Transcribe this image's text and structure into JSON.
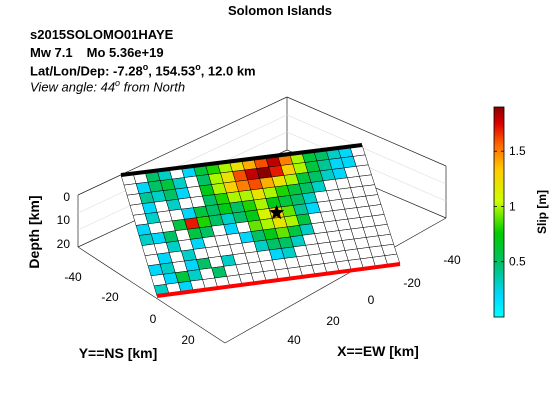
{
  "chart_data": {
    "type": "heatmap",
    "title": "Solomon Islands",
    "annotations": {
      "event": "s2015SOLOMO01HAYE",
      "magnitude": "Mw 7.1",
      "moment": "Mo 5.36e+19",
      "location_prefix": "Lat/Lon/Dep: -7.28",
      "location_mid": ", 154.53",
      "location_suffix": ", 12.0 km",
      "view_prefix": "View angle:  44",
      "view_suffix": " from North",
      "degree_symbol": "o"
    },
    "xlabel": "X==EW [km]",
    "ylabel": "Y==NS [km]",
    "zlabel": "Depth [km]",
    "x_ticks": [
      "-40",
      "-20",
      "0",
      "20",
      "40"
    ],
    "y_ticks": [
      "-40",
      "-20",
      "0",
      "20"
    ],
    "z_ticks": [
      "0",
      "10",
      "20"
    ],
    "colorbar": {
      "label": "Slip [m]",
      "ticks": [
        "0.5",
        "1",
        "1.5"
      ],
      "tick_values": [
        0.5,
        1.0,
        1.5
      ],
      "range": [
        0,
        1.9
      ],
      "colormap": "jet"
    },
    "grid": {
      "rows": 12,
      "cols": 20
    },
    "slip": [
      [
        0.0,
        0.0,
        0.5,
        0.3,
        0.0,
        0.2,
        0.6,
        0.8,
        1.0,
        1.2,
        1.4,
        1.6,
        1.8,
        1.5,
        1.0,
        0.6,
        0.5,
        0.3,
        0.2,
        0.0
      ],
      [
        0.0,
        0.2,
        0.5,
        0.6,
        0.3,
        0.0,
        0.5,
        1.0,
        1.2,
        1.6,
        1.8,
        1.9,
        1.7,
        1.3,
        1.0,
        0.6,
        0.4,
        0.2,
        0.2,
        0.0
      ],
      [
        0.0,
        0.4,
        0.3,
        0.5,
        0.2,
        0.0,
        0.7,
        1.0,
        1.3,
        1.5,
        1.6,
        1.4,
        1.2,
        1.0,
        0.6,
        0.5,
        0.3,
        0.2,
        0.0,
        0.0
      ],
      [
        0.0,
        0.2,
        0.0,
        0.3,
        0.0,
        0.0,
        0.5,
        0.8,
        1.0,
        1.0,
        1.2,
        1.0,
        0.8,
        0.6,
        0.5,
        0.3,
        0.0,
        0.0,
        0.0,
        0.0
      ],
      [
        0.0,
        0.3,
        0.0,
        0.0,
        0.2,
        0.6,
        0.5,
        0.7,
        0.5,
        0.8,
        1.0,
        0.7,
        0.6,
        0.5,
        0.3,
        0.0,
        0.0,
        0.0,
        0.0,
        0.0
      ],
      [
        0.2,
        0.0,
        0.0,
        0.6,
        1.7,
        0.8,
        0.5,
        0.3,
        0.5,
        0.7,
        1.1,
        1.3,
        0.9,
        0.4,
        0.2,
        0.0,
        0.0,
        0.0,
        0.0,
        0.0
      ],
      [
        0.3,
        0.2,
        0.5,
        0.0,
        0.6,
        0.5,
        0.0,
        0.2,
        0.0,
        0.9,
        1.0,
        1.2,
        1.0,
        0.6,
        0.0,
        0.0,
        0.0,
        0.0,
        0.0,
        0.0
      ],
      [
        0.0,
        0.0,
        0.3,
        0.0,
        0.2,
        0.0,
        0.0,
        0.0,
        0.2,
        0.5,
        0.7,
        0.9,
        0.6,
        0.3,
        0.0,
        0.0,
        0.0,
        0.0,
        0.0,
        0.0
      ],
      [
        0.0,
        0.2,
        0.0,
        0.3,
        0.0,
        0.0,
        0.0,
        0.0,
        0.0,
        0.3,
        0.5,
        0.5,
        0.3,
        0.0,
        0.0,
        0.0,
        0.0,
        0.0,
        0.0,
        0.0
      ],
      [
        0.2,
        0.3,
        0.0,
        0.2,
        0.5,
        0.0,
        0.3,
        0.0,
        0.0,
        0.0,
        0.2,
        0.3,
        0.0,
        0.0,
        0.0,
        0.0,
        0.0,
        0.0,
        0.0,
        0.0
      ],
      [
        0.0,
        0.2,
        0.6,
        0.3,
        0.0,
        0.5,
        0.0,
        0.0,
        0.0,
        0.0,
        0.0,
        0.0,
        0.0,
        0.0,
        0.0,
        0.0,
        0.0,
        0.0,
        0.0,
        0.0
      ],
      [
        0.3,
        0.0,
        0.2,
        0.0,
        0.0,
        0.0,
        0.0,
        0.0,
        0.0,
        0.0,
        0.0,
        0.0,
        0.0,
        0.0,
        0.0,
        0.0,
        0.0,
        0.0,
        0.0,
        0.0
      ]
    ],
    "hypocenter": {
      "row": 5,
      "col": 11,
      "marker": "star"
    },
    "colors": {
      "top_edge": "#000000",
      "bottom_edge": "#ff0000",
      "grid_line": "#000000",
      "zero_fill": "#ffffff"
    }
  }
}
